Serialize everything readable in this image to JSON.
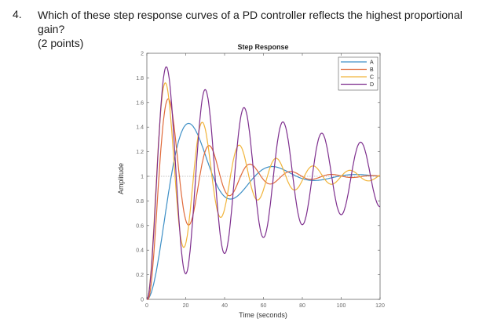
{
  "question": {
    "number": "4.",
    "line1": "Which of these step response curves of a PD controller reflects the highest proportional gain?",
    "line2": "(2 points)"
  },
  "chart_data": {
    "type": "line",
    "title": "Step Response",
    "xlabel": "Time (seconds)",
    "ylabel": "Amplitude",
    "xlim": [
      0,
      120
    ],
    "ylim": [
      0,
      2
    ],
    "xticks": [
      0,
      20,
      40,
      60,
      80,
      100,
      120
    ],
    "yticks": [
      0,
      0.2,
      0.4,
      0.6,
      0.8,
      1,
      1.2,
      1.4,
      1.6,
      1.8,
      2
    ],
    "ytick_labels": [
      "0",
      "0.2",
      "0.4",
      "0.6",
      "0.8",
      "1",
      "1.2",
      "1.4",
      "1.6",
      "1.8",
      "2"
    ],
    "reference_line": 1,
    "legend_position": "top-right",
    "series": [
      {
        "name": "A",
        "color": "#3d8fc6",
        "final": 1,
        "peak": 1.43,
        "peak_time": 13,
        "period": 43
      },
      {
        "name": "B",
        "color": "#e06a3a",
        "final": 1,
        "peak": 1.63,
        "peak_time": 11,
        "period": 21
      },
      {
        "name": "C",
        "color": "#f1b43a",
        "final": 1,
        "peak": 1.76,
        "peak_time": 9,
        "period": 19
      },
      {
        "name": "D",
        "color": "#7e2f8e",
        "final": 1,
        "peak": 1.89,
        "peak_time": 8,
        "period": 20
      }
    ]
  }
}
